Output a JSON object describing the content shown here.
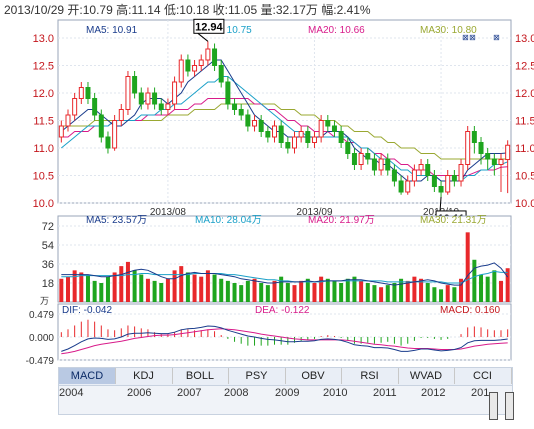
{
  "header": {
    "date": "2013/10/29",
    "open_label": "开:",
    "open": "10.79",
    "high_label": "高:",
    "high": "11.14",
    "low_label": "低:",
    "low": "10.18",
    "close_label": "收:",
    "close": "11.05",
    "volume_label": "量:",
    "volume": "32.17万",
    "change_label": "幅:",
    "change": "2.41%"
  },
  "colors": {
    "up": "#e8282b",
    "down": "#1ea51e",
    "ma5": "#1a3c8c",
    "ma10": "#1aa0c8",
    "ma20": "#d81b8a",
    "ma30": "#9aa832"
  },
  "chart_data": [
    {
      "type": "candlestick",
      "name_row": [
        "MA5: 10.91",
        "MA10: 10.75",
        "MA20: 10.66",
        "MA30: 10.80"
      ],
      "ylim": [
        10.0,
        13.0
      ],
      "yticks": [
        "13.0",
        "12.5",
        "12.0",
        "11.5",
        "11.0",
        "10.5",
        "10.0"
      ],
      "xticks": [
        {
          "index": 16,
          "label": "2013/08"
        },
        {
          "index": 38,
          "label": "2013/09"
        },
        {
          "index": 57,
          "label": "2013/10"
        }
      ],
      "annotations": [
        {
          "index": 22,
          "value": 12.94,
          "label": "12.94"
        },
        {
          "index": 57,
          "value": 10.11,
          "label": "10.11"
        }
      ],
      "candles": [
        [
          11.2,
          11.4,
          11.1,
          11.5
        ],
        [
          11.4,
          11.6,
          11.3,
          11.7
        ],
        [
          11.6,
          11.9,
          11.5,
          12.0
        ],
        [
          11.9,
          12.1,
          11.8,
          12.2
        ],
        [
          12.1,
          11.9,
          11.8,
          12.2
        ],
        [
          11.9,
          11.6,
          11.5,
          12.0
        ],
        [
          11.6,
          11.2,
          11.1,
          11.7
        ],
        [
          11.2,
          11.0,
          10.9,
          11.3
        ],
        [
          11.0,
          11.5,
          10.95,
          11.6
        ],
        [
          11.5,
          11.7,
          11.4,
          11.8
        ],
        [
          11.7,
          12.3,
          11.6,
          12.4
        ],
        [
          12.3,
          12.0,
          11.9,
          12.4
        ],
        [
          12.0,
          11.8,
          11.7,
          12.1
        ],
        [
          11.8,
          12.0,
          11.7,
          12.1
        ],
        [
          12.0,
          11.8,
          11.7,
          12.1
        ],
        [
          11.8,
          11.7,
          11.6,
          11.9
        ],
        [
          11.7,
          11.8,
          11.6,
          11.9
        ],
        [
          11.8,
          12.2,
          11.7,
          12.3
        ],
        [
          12.2,
          12.6,
          12.1,
          12.7
        ],
        [
          12.6,
          12.4,
          12.3,
          12.7
        ],
        [
          12.4,
          12.5,
          12.3,
          12.6
        ],
        [
          12.5,
          12.6,
          12.4,
          12.7
        ],
        [
          12.6,
          12.8,
          12.5,
          12.94
        ],
        [
          12.8,
          12.5,
          12.4,
          12.9
        ],
        [
          12.5,
          12.2,
          12.1,
          12.6
        ],
        [
          12.2,
          11.8,
          11.7,
          12.3
        ],
        [
          11.8,
          11.7,
          11.6,
          11.9
        ],
        [
          11.7,
          11.6,
          11.5,
          11.8
        ],
        [
          11.6,
          11.4,
          11.3,
          11.7
        ],
        [
          11.4,
          11.5,
          11.3,
          11.6
        ],
        [
          11.5,
          11.3,
          11.2,
          11.6
        ],
        [
          11.3,
          11.2,
          11.1,
          11.4
        ],
        [
          11.2,
          11.4,
          11.1,
          11.5
        ],
        [
          11.4,
          11.1,
          11.0,
          11.5
        ],
        [
          11.1,
          11.0,
          10.9,
          11.2
        ],
        [
          11.0,
          11.2,
          10.9,
          11.3
        ],
        [
          11.2,
          11.3,
          11.1,
          11.4
        ],
        [
          11.3,
          11.1,
          11.0,
          11.4
        ],
        [
          11.1,
          11.2,
          11.0,
          11.3
        ],
        [
          11.2,
          11.5,
          11.1,
          11.6
        ],
        [
          11.5,
          11.4,
          11.3,
          11.6
        ],
        [
          11.4,
          11.3,
          11.2,
          11.5
        ],
        [
          11.3,
          11.1,
          11.0,
          11.4
        ],
        [
          11.1,
          10.9,
          10.8,
          11.2
        ],
        [
          10.9,
          10.7,
          10.6,
          11.0
        ],
        [
          10.7,
          10.9,
          10.6,
          11.0
        ],
        [
          10.9,
          10.8,
          10.7,
          11.0
        ],
        [
          10.8,
          10.6,
          10.5,
          10.9
        ],
        [
          10.6,
          10.8,
          10.5,
          10.9
        ],
        [
          10.8,
          10.6,
          10.5,
          10.9
        ],
        [
          10.6,
          10.4,
          10.3,
          10.7
        ],
        [
          10.4,
          10.2,
          10.15,
          10.5
        ],
        [
          10.2,
          10.4,
          10.15,
          10.5
        ],
        [
          10.4,
          10.6,
          10.3,
          10.7
        ],
        [
          10.6,
          10.7,
          10.5,
          10.8
        ],
        [
          10.7,
          10.5,
          10.4,
          10.8
        ],
        [
          10.5,
          10.3,
          10.2,
          10.6
        ],
        [
          10.3,
          10.2,
          10.11,
          10.4
        ],
        [
          10.2,
          10.5,
          10.15,
          10.6
        ],
        [
          10.5,
          10.4,
          10.3,
          10.6
        ],
        [
          10.4,
          10.7,
          10.3,
          10.8
        ],
        [
          10.7,
          11.3,
          10.6,
          11.4
        ],
        [
          11.3,
          11.1,
          10.9,
          11.4
        ],
        [
          11.1,
          10.9,
          10.7,
          11.2
        ],
        [
          10.9,
          10.8,
          10.6,
          11.0
        ],
        [
          10.8,
          10.7,
          10.5,
          10.9
        ],
        [
          10.7,
          10.79,
          10.2,
          10.9
        ],
        [
          10.79,
          11.05,
          10.18,
          11.14
        ]
      ],
      "ma5": [
        11.3,
        11.4,
        11.5,
        11.6,
        11.7,
        11.7,
        11.6,
        11.5,
        11.4,
        11.4,
        11.5,
        11.6,
        11.8,
        11.9,
        11.9,
        11.9,
        11.8,
        11.9,
        12.0,
        12.2,
        12.3,
        12.4,
        12.5,
        12.6,
        12.6,
        12.4,
        12.2,
        12.0,
        11.8,
        11.6,
        11.5,
        11.4,
        11.3,
        11.3,
        11.2,
        11.2,
        11.2,
        11.2,
        11.2,
        11.2,
        11.3,
        11.3,
        11.3,
        11.2,
        11.0,
        10.9,
        10.8,
        10.8,
        10.7,
        10.7,
        10.6,
        10.5,
        10.4,
        10.4,
        10.4,
        10.5,
        10.5,
        10.4,
        10.4,
        10.4,
        10.4,
        10.6,
        10.7,
        10.8,
        10.9,
        10.9,
        10.9,
        10.91
      ],
      "ma10": [
        11.0,
        11.1,
        11.2,
        11.3,
        11.4,
        11.4,
        11.4,
        11.4,
        11.5,
        11.5,
        11.5,
        11.5,
        11.6,
        11.6,
        11.6,
        11.7,
        11.7,
        11.8,
        11.8,
        11.9,
        12.0,
        12.1,
        12.2,
        12.2,
        12.3,
        12.3,
        12.2,
        12.1,
        12.0,
        11.9,
        11.8,
        11.7,
        11.6,
        11.5,
        11.4,
        11.3,
        11.3,
        11.2,
        11.2,
        11.2,
        11.2,
        11.2,
        11.2,
        11.2,
        11.1,
        11.0,
        11.0,
        10.9,
        10.8,
        10.8,
        10.7,
        10.6,
        10.6,
        10.5,
        10.5,
        10.5,
        10.5,
        10.4,
        10.4,
        10.4,
        10.4,
        10.5,
        10.5,
        10.6,
        10.6,
        10.7,
        10.7,
        10.75
      ],
      "ma20": [
        11.2,
        11.2,
        11.3,
        11.3,
        11.3,
        11.4,
        11.4,
        11.4,
        11.5,
        11.5,
        11.5,
        11.5,
        11.5,
        11.6,
        11.6,
        11.6,
        11.6,
        11.7,
        11.7,
        11.7,
        11.8,
        11.8,
        11.9,
        11.9,
        11.9,
        11.9,
        11.9,
        11.9,
        11.9,
        11.8,
        11.8,
        11.7,
        11.7,
        11.6,
        11.5,
        11.5,
        11.4,
        11.4,
        11.3,
        11.3,
        11.3,
        11.2,
        11.2,
        11.1,
        11.1,
        11.0,
        11.0,
        10.9,
        10.9,
        10.8,
        10.8,
        10.7,
        10.7,
        10.6,
        10.6,
        10.6,
        10.5,
        10.5,
        10.5,
        10.5,
        10.5,
        10.5,
        10.55,
        10.6,
        10.6,
        10.6,
        10.65,
        10.66
      ],
      "ma30": [
        11.4,
        11.4,
        11.4,
        11.4,
        11.4,
        11.5,
        11.5,
        11.5,
        11.5,
        11.5,
        11.5,
        11.5,
        11.5,
        11.5,
        11.5,
        11.5,
        11.6,
        11.6,
        11.6,
        11.6,
        11.7,
        11.7,
        11.7,
        11.7,
        11.8,
        11.8,
        11.8,
        11.8,
        11.8,
        11.8,
        11.8,
        11.8,
        11.8,
        11.7,
        11.7,
        11.7,
        11.6,
        11.6,
        11.6,
        11.5,
        11.5,
        11.5,
        11.4,
        11.4,
        11.3,
        11.3,
        11.3,
        11.2,
        11.2,
        11.1,
        11.1,
        11.0,
        11.0,
        11.0,
        10.9,
        10.9,
        10.9,
        10.8,
        10.8,
        10.8,
        10.8,
        10.8,
        10.8,
        10.8,
        10.8,
        10.8,
        10.8,
        10.8
      ]
    },
    {
      "type": "bar",
      "name_row": [
        "MA5: 23.57万",
        "MA10: 28.04万",
        "MA20: 21.97万",
        "MA30: 21.31万"
      ],
      "ylim": [
        0,
        72
      ],
      "yticks": [
        "72",
        "54",
        "36",
        "18"
      ],
      "unit": "万",
      "values": [
        22,
        24,
        30,
        28,
        26,
        20,
        18,
        24,
        28,
        34,
        38,
        30,
        26,
        22,
        20,
        18,
        22,
        30,
        34,
        28,
        26,
        24,
        30,
        26,
        22,
        20,
        18,
        16,
        20,
        22,
        18,
        16,
        20,
        24,
        18,
        16,
        20,
        22,
        18,
        24,
        22,
        20,
        18,
        22,
        24,
        20,
        18,
        16,
        14,
        16,
        18,
        22,
        20,
        24,
        22,
        18,
        14,
        12,
        16,
        14,
        22,
        66,
        40,
        26,
        24,
        30,
        20,
        32
      ],
      "ma5_line": [
        26,
        26,
        26,
        26,
        26,
        25,
        24,
        24,
        25,
        26,
        28,
        30,
        31,
        30,
        27,
        24,
        22,
        22,
        25,
        27,
        28,
        27,
        27,
        27,
        26,
        25,
        24,
        22,
        21,
        20,
        19,
        18,
        18,
        19,
        19,
        19,
        19,
        20,
        19,
        20,
        20,
        20,
        20,
        21,
        21,
        21,
        20,
        19,
        18,
        17,
        16,
        17,
        18,
        19,
        20,
        21,
        20,
        18,
        17,
        16,
        16,
        25,
        32,
        34,
        35,
        37,
        32,
        23.57
      ],
      "ma10_line": [
        24,
        24,
        24,
        25,
        25,
        25,
        25,
        25,
        25,
        25,
        26,
        26,
        27,
        27,
        26,
        26,
        26,
        26,
        26,
        26,
        27,
        27,
        27,
        27,
        27,
        26,
        26,
        25,
        24,
        23,
        22,
        21,
        21,
        20,
        20,
        19,
        19,
        19,
        19,
        19,
        20,
        20,
        20,
        20,
        20,
        20,
        20,
        20,
        20,
        19,
        19,
        19,
        19,
        19,
        19,
        19,
        19,
        19,
        18,
        18,
        18,
        21,
        24,
        26,
        27,
        29,
        28,
        28.04
      ]
    },
    {
      "type": "line",
      "name_row": [
        "DIF: -0.042",
        "DEA: -0.122",
        "MACD: 0.160"
      ],
      "ylim": [
        -0.479,
        0.479
      ],
      "yticks": [
        "0.479",
        "0.000",
        "-0.479"
      ],
      "dif": [
        -0.3,
        -0.25,
        -0.18,
        -0.1,
        -0.04,
        -0.02,
        -0.03,
        -0.05,
        -0.04,
        0.0,
        0.06,
        0.08,
        0.08,
        0.09,
        0.08,
        0.07,
        0.07,
        0.1,
        0.15,
        0.17,
        0.18,
        0.2,
        0.23,
        0.22,
        0.19,
        0.14,
        0.1,
        0.06,
        0.02,
        0.0,
        -0.03,
        -0.05,
        -0.06,
        -0.08,
        -0.1,
        -0.1,
        -0.09,
        -0.09,
        -0.08,
        -0.05,
        -0.04,
        -0.05,
        -0.07,
        -0.11,
        -0.16,
        -0.18,
        -0.19,
        -0.22,
        -0.22,
        -0.23,
        -0.26,
        -0.3,
        -0.3,
        -0.28,
        -0.25,
        -0.25,
        -0.27,
        -0.29,
        -0.28,
        -0.26,
        -0.22,
        -0.12,
        -0.08,
        -0.07,
        -0.07,
        -0.07,
        -0.06,
        -0.042
      ],
      "dea": [
        -0.35,
        -0.33,
        -0.3,
        -0.26,
        -0.22,
        -0.18,
        -0.15,
        -0.13,
        -0.11,
        -0.09,
        -0.06,
        -0.03,
        -0.01,
        0.01,
        0.03,
        0.04,
        0.04,
        0.05,
        0.07,
        0.09,
        0.11,
        0.13,
        0.15,
        0.16,
        0.17,
        0.16,
        0.15,
        0.13,
        0.11,
        0.09,
        0.06,
        0.04,
        0.02,
        0.0,
        -0.02,
        -0.04,
        -0.05,
        -0.06,
        -0.06,
        -0.06,
        -0.06,
        -0.06,
        -0.06,
        -0.07,
        -0.09,
        -0.11,
        -0.13,
        -0.15,
        -0.16,
        -0.18,
        -0.19,
        -0.21,
        -0.23,
        -0.24,
        -0.24,
        -0.24,
        -0.25,
        -0.26,
        -0.26,
        -0.26,
        -0.25,
        -0.22,
        -0.19,
        -0.17,
        -0.15,
        -0.14,
        -0.13,
        -0.122
      ],
      "macd": [
        0.1,
        0.16,
        0.24,
        0.32,
        0.36,
        0.32,
        0.24,
        0.16,
        0.14,
        0.18,
        0.24,
        0.22,
        0.18,
        0.16,
        0.1,
        0.06,
        0.06,
        0.1,
        0.16,
        0.16,
        0.14,
        0.14,
        0.16,
        0.12,
        0.04,
        -0.04,
        -0.1,
        -0.14,
        -0.18,
        -0.18,
        -0.18,
        -0.18,
        -0.16,
        -0.16,
        -0.16,
        -0.12,
        -0.08,
        -0.06,
        -0.04,
        0.02,
        0.04,
        0.02,
        -0.02,
        -0.08,
        -0.14,
        -0.14,
        -0.12,
        -0.14,
        -0.12,
        -0.1,
        -0.14,
        -0.18,
        -0.14,
        -0.08,
        -0.02,
        -0.02,
        -0.04,
        -0.06,
        -0.04,
        0.0,
        0.06,
        0.2,
        0.22,
        0.2,
        0.16,
        0.14,
        0.14,
        0.16
      ]
    }
  ],
  "tabs": [
    "MACD",
    "KDJ",
    "BOLL",
    "PSY",
    "OBV",
    "RSI",
    "WVAD",
    "CCI"
  ],
  "active_tab": "MACD",
  "timeline_years": [
    "2004",
    "2006",
    "2007",
    "2008",
    "2009",
    "2010",
    "2011",
    "2012",
    "201"
  ]
}
